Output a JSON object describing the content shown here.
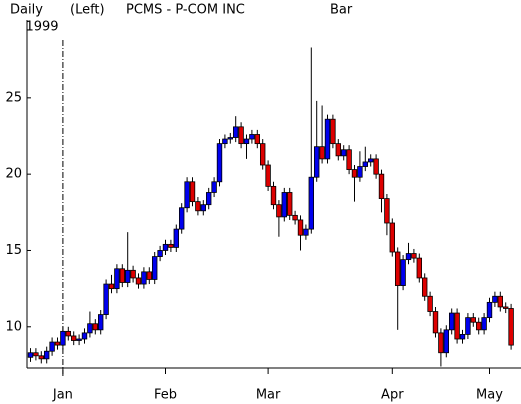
{
  "chart_data": {
    "type": "candlestick",
    "period": "Daily",
    "axis_side": "(Left)",
    "title": "PCMS - P-COM INC",
    "style": "Bar",
    "year_label": "1999",
    "up_color": "#0000ee",
    "down_color": "#dd0000",
    "ylim": [
      7.3,
      30.1
    ],
    "yticks": [
      10,
      15,
      20,
      25
    ],
    "categories": [
      null,
      null,
      null,
      null,
      null,
      null,
      "Jan",
      null,
      null,
      null,
      null,
      null,
      null,
      null,
      null,
      null,
      null,
      null,
      null,
      null,
      null,
      null,
      null,
      null,
      null,
      "Feb",
      null,
      null,
      null,
      null,
      null,
      null,
      null,
      null,
      null,
      null,
      null,
      null,
      null,
      null,
      null,
      null,
      null,
      null,
      "Mar",
      null,
      null,
      null,
      null,
      null,
      null,
      null,
      null,
      null,
      null,
      null,
      null,
      null,
      null,
      null,
      null,
      null,
      null,
      null,
      null,
      null,
      null,
      "Apr",
      null,
      null,
      null,
      null,
      null,
      null,
      null,
      null,
      null,
      null,
      null,
      null,
      null,
      null,
      null,
      null,
      null,
      "May",
      null,
      null,
      null,
      null
    ],
    "open": [
      8.0,
      8.3,
      8.1,
      7.9,
      8.4,
      9.0,
      8.8,
      9.7,
      9.4,
      9.1,
      9.2,
      9.6,
      10.2,
      9.8,
      10.8,
      12.8,
      12.5,
      13.8,
      12.9,
      13.7,
      13.2,
      12.8,
      13.6,
      13.1,
      14.6,
      15.0,
      15.4,
      15.2,
      16.4,
      17.8,
      19.5,
      18.2,
      17.6,
      18.0,
      18.8,
      19.5,
      22.0,
      22.3,
      22.4,
      23.1,
      22.0,
      22.3,
      22.6,
      22.0,
      20.6,
      19.2,
      18.0,
      17.2,
      18.8,
      17.3,
      17.0,
      16.0,
      16.4,
      19.8,
      21.8,
      21.0,
      23.6,
      22.0,
      21.2,
      21.6,
      20.3,
      19.8,
      20.5,
      20.8,
      21.0,
      20.0,
      18.4,
      16.8,
      14.9,
      12.7,
      14.4,
      14.8,
      14.5,
      13.2,
      12.0,
      11.0,
      9.6,
      8.3,
      9.8,
      10.9,
      9.2,
      9.5,
      10.6,
      10.3,
      9.8,
      10.6,
      11.6,
      12.0,
      11.3,
      11.2
    ],
    "high": [
      8.6,
      8.6,
      8.4,
      8.7,
      9.3,
      9.3,
      10.0,
      10.0,
      9.7,
      9.5,
      9.9,
      11.0,
      10.5,
      11.1,
      13.1,
      13.4,
      14.1,
      14.1,
      16.2,
      14.0,
      13.5,
      13.9,
      13.9,
      14.9,
      15.3,
      15.7,
      15.7,
      16.7,
      18.1,
      19.8,
      19.8,
      18.5,
      18.3,
      19.1,
      19.8,
      22.3,
      22.6,
      22.7,
      23.8,
      23.4,
      22.6,
      22.9,
      22.9,
      22.3,
      20.9,
      19.5,
      18.3,
      19.1,
      19.1,
      17.6,
      17.3,
      16.7,
      28.3,
      24.8,
      24.5,
      23.9,
      23.9,
      22.3,
      21.9,
      21.9,
      20.6,
      21.5,
      21.8,
      21.3,
      21.3,
      20.3,
      18.7,
      17.1,
      15.2,
      14.7,
      15.5,
      15.1,
      14.8,
      13.5,
      12.3,
      11.3,
      9.9,
      10.1,
      11.2,
      11.2,
      9.8,
      10.9,
      10.9,
      10.6,
      10.9,
      11.9,
      12.3,
      12.3,
      11.6,
      11.5
    ],
    "low": [
      7.7,
      7.8,
      7.6,
      7.6,
      8.1,
      8.5,
      8.5,
      9.1,
      8.8,
      8.8,
      8.9,
      9.3,
      9.5,
      9.5,
      10.5,
      12.2,
      12.2,
      12.6,
      12.6,
      12.9,
      12.5,
      12.5,
      12.8,
      12.8,
      14.3,
      14.7,
      14.9,
      14.9,
      16.1,
      17.5,
      17.9,
      17.3,
      17.3,
      17.7,
      18.5,
      19.2,
      21.7,
      22.0,
      22.1,
      21.7,
      21.0,
      22.0,
      21.7,
      20.3,
      18.9,
      17.7,
      15.9,
      16.9,
      17.0,
      16.7,
      15.0,
      15.7,
      16.1,
      19.5,
      20.7,
      20.7,
      21.7,
      20.9,
      20.9,
      20.0,
      18.2,
      19.5,
      20.2,
      20.5,
      19.7,
      17.5,
      16.0,
      14.6,
      9.8,
      12.4,
      14.1,
      14.2,
      12.9,
      11.7,
      10.7,
      9.3,
      7.4,
      8.0,
      9.5,
      8.9,
      8.9,
      9.2,
      10.0,
      9.5,
      9.5,
      10.3,
      11.3,
      11.0,
      10.9,
      8.5
    ],
    "close": [
      8.3,
      8.1,
      7.9,
      8.4,
      9.0,
      8.8,
      9.7,
      9.4,
      9.1,
      9.2,
      9.6,
      10.2,
      9.8,
      10.8,
      12.8,
      12.5,
      13.8,
      12.9,
      13.7,
      13.2,
      12.8,
      13.6,
      13.1,
      14.6,
      15.0,
      15.4,
      15.2,
      16.4,
      17.8,
      19.5,
      18.2,
      17.6,
      18.0,
      18.8,
      19.5,
      22.0,
      22.3,
      22.4,
      23.1,
      22.0,
      22.3,
      22.6,
      22.0,
      20.6,
      19.2,
      18.0,
      17.2,
      18.8,
      17.3,
      17.0,
      16.0,
      16.4,
      19.8,
      21.8,
      21.0,
      23.6,
      22.0,
      21.2,
      21.6,
      20.3,
      19.8,
      20.5,
      20.8,
      21.0,
      20.0,
      18.4,
      16.8,
      14.9,
      12.7,
      14.4,
      14.8,
      14.5,
      13.2,
      12.0,
      11.0,
      9.6,
      8.3,
      9.8,
      10.9,
      9.2,
      9.5,
      10.6,
      10.3,
      9.8,
      10.6,
      11.6,
      12.0,
      11.3,
      11.2,
      8.8
    ]
  }
}
